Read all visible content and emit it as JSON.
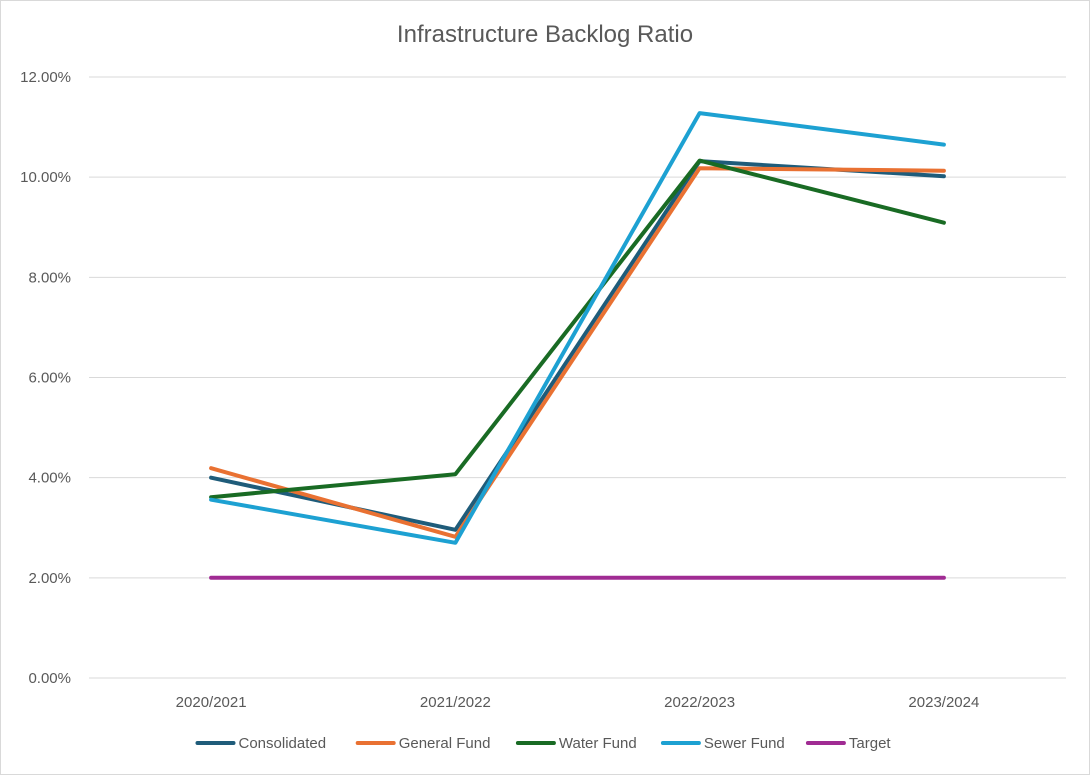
{
  "chart_data": {
    "type": "line",
    "title": "Infrastructure Backlog Ratio",
    "xlabel": "",
    "ylabel": "",
    "categories": [
      "2020/2021",
      "2021/2022",
      "2022/2023",
      "2023/2024"
    ],
    "ylim": [
      0,
      0.12
    ],
    "yticks": [
      0,
      0.02,
      0.04,
      0.06,
      0.08,
      0.1,
      0.12
    ],
    "ytick_labels": [
      "0.00%",
      "2.00%",
      "4.00%",
      "6.00%",
      "8.00%",
      "10.00%",
      "12.00%"
    ],
    "grid": true,
    "legend_position": "bottom",
    "series": [
      {
        "name": "Consolidated",
        "color": "#1f5c7a",
        "values": [
          0.04,
          0.0296,
          0.1032,
          0.1002
        ]
      },
      {
        "name": "General Fund",
        "color": "#e97132",
        "values": [
          0.0419,
          0.0282,
          0.1018,
          0.1013
        ]
      },
      {
        "name": "Water Fund",
        "color": "#196b24",
        "values": [
          0.0361,
          0.0407,
          0.1033,
          0.0909
        ]
      },
      {
        "name": "Sewer Fund",
        "color": "#1da1d2",
        "values": [
          0.0356,
          0.027,
          0.1128,
          0.1065
        ]
      },
      {
        "name": "Target",
        "color": "#a02b93",
        "values": [
          0.02,
          0.02,
          0.02,
          0.02
        ]
      }
    ]
  }
}
